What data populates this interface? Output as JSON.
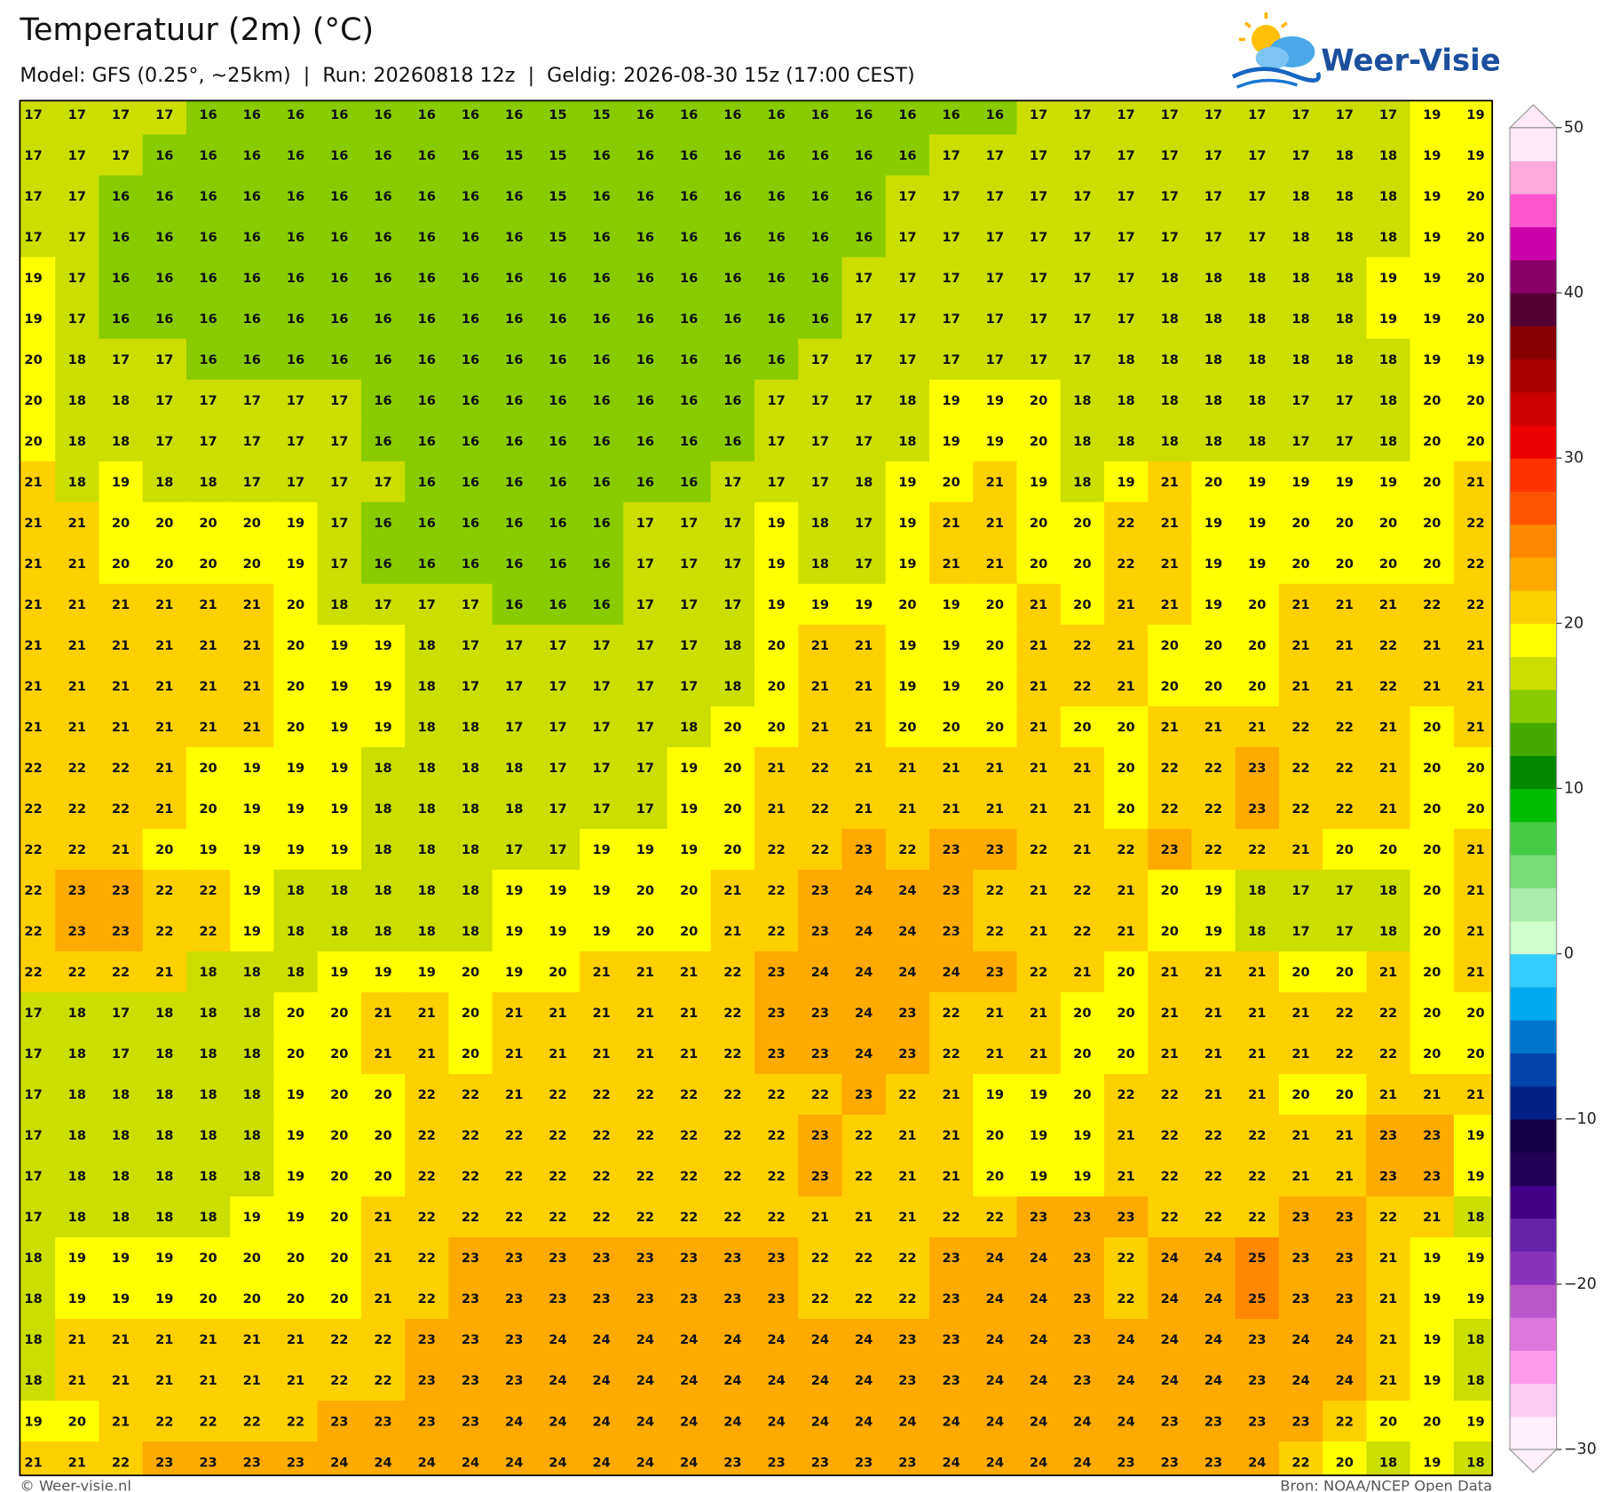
{
  "header": {
    "title": "Temperatuur (2m) (°C)",
    "subtitle": "Model: GFS (0.25°, ~25km)  |  Run: 20260818 12z  |  Geldig: 2026-08-30 15z (17:00 CEST)",
    "logo": "Weer-Visie"
  },
  "map": {
    "rows": [
      [
        17,
        17,
        17,
        17,
        16,
        16,
        16,
        16,
        16,
        16,
        16,
        16,
        15,
        15,
        16,
        16,
        16,
        16,
        16,
        16,
        16,
        16,
        16,
        17,
        17,
        17,
        17,
        17,
        17,
        17,
        17,
        17,
        19,
        19
      ],
      [
        17,
        17,
        17,
        16,
        16,
        16,
        16,
        16,
        16,
        16,
        16,
        15,
        15,
        16,
        16,
        16,
        16,
        16,
        16,
        16,
        16,
        17,
        17,
        17,
        17,
        17,
        17,
        17,
        17,
        17,
        18,
        18,
        19,
        19
      ],
      [
        17,
        17,
        16,
        16,
        16,
        16,
        16,
        16,
        16,
        16,
        16,
        16,
        15,
        16,
        16,
        16,
        16,
        16,
        16,
        16,
        17,
        17,
        17,
        17,
        17,
        17,
        17,
        17,
        17,
        18,
        18,
        18,
        19,
        20
      ],
      [
        17,
        17,
        16,
        16,
        16,
        16,
        16,
        16,
        16,
        16,
        16,
        16,
        15,
        16,
        16,
        16,
        16,
        16,
        16,
        16,
        17,
        17,
        17,
        17,
        17,
        17,
        17,
        17,
        17,
        18,
        18,
        18,
        19,
        20
      ],
      [
        19,
        17,
        16,
        16,
        16,
        16,
        16,
        16,
        16,
        16,
        16,
        16,
        16,
        16,
        16,
        16,
        16,
        16,
        16,
        17,
        17,
        17,
        17,
        17,
        17,
        17,
        18,
        18,
        18,
        18,
        18,
        19,
        19,
        20
      ],
      [
        19,
        17,
        16,
        16,
        16,
        16,
        16,
        16,
        16,
        16,
        16,
        16,
        16,
        16,
        16,
        16,
        16,
        16,
        16,
        17,
        17,
        17,
        17,
        17,
        17,
        17,
        18,
        18,
        18,
        18,
        18,
        19,
        19,
        20
      ],
      [
        20,
        18,
        17,
        17,
        16,
        16,
        16,
        16,
        16,
        16,
        16,
        16,
        16,
        16,
        16,
        16,
        16,
        16,
        17,
        17,
        17,
        17,
        17,
        17,
        17,
        18,
        18,
        18,
        18,
        18,
        18,
        18,
        19,
        19
      ],
      [
        20,
        18,
        18,
        17,
        17,
        17,
        17,
        17,
        16,
        16,
        16,
        16,
        16,
        16,
        16,
        16,
        16,
        17,
        17,
        17,
        18,
        19,
        19,
        20,
        18,
        18,
        18,
        18,
        18,
        17,
        17,
        18,
        20,
        20
      ],
      [
        20,
        18,
        18,
        17,
        17,
        17,
        17,
        17,
        16,
        16,
        16,
        16,
        16,
        16,
        16,
        16,
        16,
        17,
        17,
        17,
        18,
        19,
        19,
        20,
        18,
        18,
        18,
        18,
        18,
        17,
        17,
        18,
        20,
        20
      ],
      [
        21,
        18,
        19,
        18,
        18,
        17,
        17,
        17,
        17,
        16,
        16,
        16,
        16,
        16,
        16,
        16,
        17,
        17,
        17,
        18,
        19,
        20,
        21,
        19,
        18,
        19,
        21,
        20,
        19,
        19,
        19,
        19,
        20,
        21
      ],
      [
        21,
        21,
        20,
        20,
        20,
        20,
        19,
        17,
        16,
        16,
        16,
        16,
        16,
        16,
        17,
        17,
        17,
        19,
        18,
        17,
        19,
        21,
        21,
        20,
        20,
        22,
        21,
        19,
        19,
        20,
        20,
        20,
        20,
        22
      ],
      [
        21,
        21,
        20,
        20,
        20,
        20,
        19,
        17,
        16,
        16,
        16,
        16,
        16,
        16,
        17,
        17,
        17,
        19,
        18,
        17,
        19,
        21,
        21,
        20,
        20,
        22,
        21,
        19,
        19,
        20,
        20,
        20,
        20,
        22
      ],
      [
        21,
        21,
        21,
        21,
        21,
        21,
        20,
        18,
        17,
        17,
        17,
        16,
        16,
        16,
        17,
        17,
        17,
        19,
        19,
        19,
        20,
        19,
        20,
        21,
        20,
        21,
        21,
        19,
        20,
        21,
        21,
        21,
        22,
        22
      ],
      [
        21,
        21,
        21,
        21,
        21,
        21,
        20,
        19,
        19,
        18,
        17,
        17,
        17,
        17,
        17,
        17,
        18,
        20,
        21,
        21,
        19,
        19,
        20,
        21,
        22,
        21,
        20,
        20,
        20,
        21,
        21,
        22,
        21,
        21
      ],
      [
        21,
        21,
        21,
        21,
        21,
        21,
        20,
        19,
        19,
        18,
        17,
        17,
        17,
        17,
        17,
        17,
        18,
        20,
        21,
        21,
        19,
        19,
        20,
        21,
        22,
        21,
        20,
        20,
        20,
        21,
        21,
        22,
        21,
        21
      ],
      [
        21,
        21,
        21,
        21,
        21,
        21,
        20,
        19,
        19,
        18,
        18,
        17,
        17,
        17,
        17,
        18,
        20,
        20,
        21,
        21,
        20,
        20,
        20,
        21,
        20,
        20,
        21,
        21,
        21,
        22,
        22,
        21,
        20,
        21
      ],
      [
        22,
        22,
        22,
        21,
        20,
        19,
        19,
        19,
        18,
        18,
        18,
        18,
        17,
        17,
        17,
        19,
        20,
        21,
        22,
        21,
        21,
        21,
        21,
        21,
        21,
        20,
        22,
        22,
        23,
        22,
        22,
        21,
        20,
        20
      ],
      [
        22,
        22,
        22,
        21,
        20,
        19,
        19,
        19,
        18,
        18,
        18,
        18,
        17,
        17,
        17,
        19,
        20,
        21,
        22,
        21,
        21,
        21,
        21,
        21,
        21,
        20,
        22,
        22,
        23,
        22,
        22,
        21,
        20,
        20
      ],
      [
        22,
        22,
        21,
        20,
        19,
        19,
        19,
        19,
        18,
        18,
        18,
        17,
        17,
        19,
        19,
        19,
        20,
        22,
        22,
        23,
        22,
        23,
        23,
        22,
        21,
        22,
        23,
        22,
        22,
        21,
        20,
        20,
        20,
        21
      ],
      [
        22,
        23,
        23,
        22,
        22,
        19,
        18,
        18,
        18,
        18,
        18,
        19,
        19,
        19,
        20,
        20,
        21,
        22,
        23,
        24,
        24,
        23,
        22,
        21,
        22,
        21,
        20,
        19,
        18,
        17,
        17,
        18,
        20,
        21
      ],
      [
        22,
        23,
        23,
        22,
        22,
        19,
        18,
        18,
        18,
        18,
        18,
        19,
        19,
        19,
        20,
        20,
        21,
        22,
        23,
        24,
        24,
        23,
        22,
        21,
        22,
        21,
        20,
        19,
        18,
        17,
        17,
        18,
        20,
        21
      ],
      [
        22,
        22,
        22,
        21,
        18,
        18,
        18,
        19,
        19,
        19,
        20,
        19,
        20,
        21,
        21,
        21,
        22,
        23,
        24,
        24,
        24,
        24,
        23,
        22,
        21,
        20,
        21,
        21,
        21,
        20,
        20,
        21,
        20,
        21
      ],
      [
        17,
        18,
        17,
        18,
        18,
        18,
        20,
        20,
        21,
        21,
        20,
        21,
        21,
        21,
        21,
        21,
        22,
        23,
        23,
        24,
        23,
        22,
        21,
        21,
        20,
        20,
        21,
        21,
        21,
        21,
        22,
        22,
        20,
        20
      ],
      [
        17,
        18,
        17,
        18,
        18,
        18,
        20,
        20,
        21,
        21,
        20,
        21,
        21,
        21,
        21,
        21,
        22,
        23,
        23,
        24,
        23,
        22,
        21,
        21,
        20,
        20,
        21,
        21,
        21,
        21,
        22,
        22,
        20,
        20
      ],
      [
        17,
        18,
        18,
        18,
        18,
        18,
        19,
        20,
        20,
        22,
        22,
        21,
        22,
        22,
        22,
        22,
        22,
        22,
        22,
        23,
        22,
        21,
        19,
        19,
        20,
        22,
        22,
        21,
        21,
        20,
        20,
        21,
        21,
        21
      ],
      [
        17,
        18,
        18,
        18,
        18,
        18,
        19,
        20,
        20,
        22,
        22,
        22,
        22,
        22,
        22,
        22,
        22,
        22,
        23,
        22,
        21,
        21,
        20,
        19,
        19,
        21,
        22,
        22,
        22,
        21,
        21,
        23,
        23,
        19
      ],
      [
        17,
        18,
        18,
        18,
        18,
        18,
        19,
        20,
        20,
        22,
        22,
        22,
        22,
        22,
        22,
        22,
        22,
        22,
        23,
        22,
        21,
        21,
        20,
        19,
        19,
        21,
        22,
        22,
        22,
        21,
        21,
        23,
        23,
        19
      ],
      [
        17,
        18,
        18,
        18,
        18,
        19,
        19,
        20,
        21,
        22,
        22,
        22,
        22,
        22,
        22,
        22,
        22,
        22,
        21,
        21,
        21,
        22,
        22,
        23,
        23,
        23,
        22,
        22,
        22,
        23,
        23,
        22,
        21,
        18
      ],
      [
        18,
        19,
        19,
        19,
        20,
        20,
        20,
        20,
        21,
        22,
        23,
        23,
        23,
        23,
        23,
        23,
        23,
        23,
        22,
        22,
        22,
        23,
        24,
        24,
        23,
        22,
        24,
        24,
        25,
        23,
        23,
        21,
        19,
        19
      ],
      [
        18,
        19,
        19,
        19,
        20,
        20,
        20,
        20,
        21,
        22,
        23,
        23,
        23,
        23,
        23,
        23,
        23,
        23,
        22,
        22,
        22,
        23,
        24,
        24,
        23,
        22,
        24,
        24,
        25,
        23,
        23,
        21,
        19,
        19
      ],
      [
        18,
        21,
        21,
        21,
        21,
        21,
        21,
        22,
        22,
        23,
        23,
        23,
        24,
        24,
        24,
        24,
        24,
        24,
        24,
        24,
        23,
        23,
        24,
        24,
        23,
        24,
        24,
        24,
        23,
        24,
        24,
        21,
        19,
        18
      ],
      [
        18,
        21,
        21,
        21,
        21,
        21,
        21,
        22,
        22,
        23,
        23,
        23,
        24,
        24,
        24,
        24,
        24,
        24,
        24,
        24,
        23,
        23,
        24,
        24,
        23,
        24,
        24,
        24,
        23,
        24,
        24,
        21,
        19,
        18
      ],
      [
        19,
        20,
        21,
        22,
        22,
        22,
        22,
        23,
        23,
        23,
        23,
        24,
        24,
        24,
        24,
        24,
        24,
        24,
        24,
        24,
        24,
        24,
        24,
        24,
        24,
        24,
        23,
        23,
        23,
        23,
        22,
        20,
        20,
        19
      ],
      [
        21,
        21,
        22,
        23,
        23,
        23,
        23,
        24,
        24,
        24,
        24,
        24,
        24,
        24,
        24,
        24,
        23,
        23,
        23,
        23,
        23,
        24,
        24,
        24,
        24,
        23,
        23,
        23,
        24,
        22,
        20,
        18,
        19,
        18
      ]
    ]
  },
  "colorbar": {
    "range": [
      -30,
      50
    ],
    "ticks": [
      50,
      40,
      30,
      20,
      10,
      0,
      {
        "value": -10,
        "label": "−10"
      },
      {
        "value": -20,
        "label": "−20"
      },
      {
        "value": -30,
        "label": "−30"
      }
    ],
    "colors": [
      "#fff0fc",
      "#ffccf5",
      "#ff99ee",
      "#dd77dd",
      "#bb55cc",
      "#8833bb",
      "#6622aa",
      "#440088",
      "#220055",
      "#110044",
      "#002288",
      "#0044aa",
      "#0077cc",
      "#00aaee",
      "#33ccff",
      "#ccffcc",
      "#aaeeaa",
      "#77dd77",
      "#44cc44",
      "#00bb00",
      "#008800",
      "#44aa00",
      "#88cc00",
      "#ccdd00",
      "#ffff00",
      "#ffd000",
      "#ffaa00",
      "#ff8800",
      "#ff5500",
      "#ff3300",
      "#ee0000",
      "#cc0000",
      "#aa0000",
      "#880000",
      "#550033",
      "#880066",
      "#cc00aa",
      "#ff55cc",
      "#ffaadd",
      "#ffe8f8"
    ]
  },
  "footer": {
    "left": "© Weer-visie.nl",
    "right": "Bron: NOAA/NCEP Open Data"
  }
}
